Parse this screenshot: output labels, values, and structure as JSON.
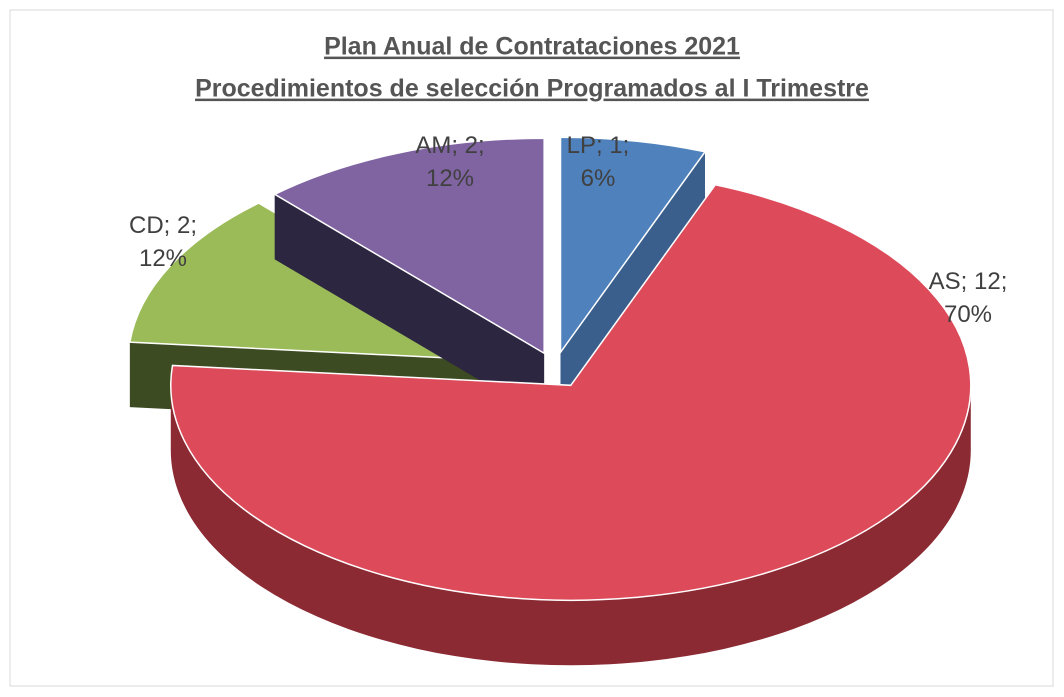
{
  "chart_data": {
    "type": "pie3d",
    "title": "Plan Anual  de Contrataciones 2021",
    "subtitle": "Procedimientos de selección Programados al I Trimestre",
    "categories": [
      "LP",
      "AS",
      "CD",
      "AM"
    ],
    "values": [
      1,
      12,
      2,
      2
    ],
    "value_labels": [
      "LP; 1; 6%",
      "AS; 12; 70%",
      "CD; 2; 12%",
      "AM; 2; 12%"
    ],
    "colors": [
      "#4f81bd",
      "#dd4b5a",
      "#9bbb59",
      "#8064a2"
    ],
    "side_colors": [
      "#3a5f8c",
      "#8b2a33",
      "#3d4b22",
      "#2d2640"
    ],
    "exploded": true
  }
}
